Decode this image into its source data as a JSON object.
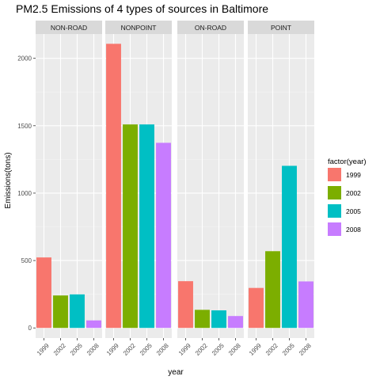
{
  "chart_data": {
    "type": "bar",
    "title": "PM2.5 Emissions of 4 types of sources in Baltimore",
    "xlabel": "year",
    "ylabel": "Emissions(tons)",
    "facets": [
      "NON-ROAD",
      "NONPOINT",
      "ON-ROAD",
      "POINT"
    ],
    "categories": [
      "1999",
      "2002",
      "2005",
      "2008"
    ],
    "ylim": [
      -75,
      2180
    ],
    "yticks": [
      0,
      500,
      1000,
      1500,
      2000
    ],
    "grid": true,
    "legend_position": "right",
    "legend": {
      "title": "factor(year)",
      "entries": [
        "1999",
        "2002",
        "2005",
        "2008"
      ]
    },
    "colors": [
      "#F8766D",
      "#7CAE00",
      "#00BFC4",
      "#C77CFF"
    ],
    "values": {
      "NON-ROAD": [
        522.9,
        240.8,
        248.9,
        55.8
      ],
      "NONPOINT": [
        2107.6,
        1509.5,
        1509.5,
        1373.2
      ],
      "ON-ROAD": [
        346.8,
        134.3,
        130.4,
        88.3
      ],
      "POINT": [
        296.8,
        569.3,
        1202.5,
        345.0
      ]
    }
  }
}
